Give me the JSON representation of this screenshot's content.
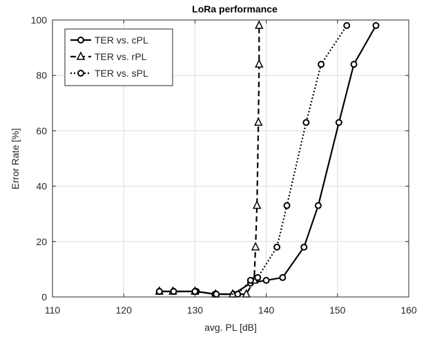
{
  "chart_data": {
    "type": "line",
    "title": "LoRa performance",
    "xlabel": "avg. PL [dB]",
    "ylabel": "Error Rate [%]",
    "xlim": [
      110,
      160
    ],
    "ylim": [
      0,
      100
    ],
    "xticks": [
      110,
      120,
      130,
      140,
      150,
      160
    ],
    "yticks": [
      0,
      20,
      40,
      60,
      80,
      100
    ],
    "x_tick_labels": [
      "110",
      "120",
      "130",
      "140",
      "150",
      "160"
    ],
    "y_tick_labels": [
      "0",
      "20",
      "40",
      "60",
      "80",
      "100"
    ],
    "grid": true,
    "legend_position": "top-left",
    "series": [
      {
        "name": "TER vs. cPL",
        "line_style": "solid",
        "marker": "circle",
        "color": "#000000",
        "x": [
          125.0,
          127.0,
          130.2,
          132.8,
          135.4,
          137.8,
          140.0,
          142.3,
          145.3,
          147.3,
          150.2,
          152.3,
          155.4
        ],
        "y": [
          2,
          2,
          2,
          1,
          1,
          5,
          6,
          7,
          18,
          33,
          63,
          84,
          98
        ]
      },
      {
        "name": "TER vs. rPL",
        "line_style": "dashed",
        "marker": "triangle",
        "color": "#000000",
        "x": [
          125.0,
          126.9,
          130.0,
          132.9,
          135.3,
          137.2,
          138.3,
          138.5,
          138.7,
          138.9,
          139.0,
          139.0
        ],
        "y": [
          2,
          2,
          2,
          1,
          1,
          1,
          6,
          18,
          33,
          63,
          84,
          98
        ]
      },
      {
        "name": "TER vs. sPL",
        "line_style": "dotted",
        "marker": "circle",
        "color": "#000000",
        "x": [
          125.0,
          127.0,
          130.0,
          133.0,
          136.0,
          137.8,
          138.8,
          141.5,
          142.9,
          145.6,
          147.7,
          151.3
        ],
        "y": [
          2,
          2,
          2,
          1,
          1,
          6,
          7,
          18,
          33,
          63,
          84,
          98
        ]
      }
    ]
  }
}
